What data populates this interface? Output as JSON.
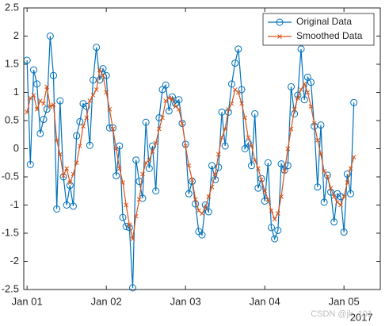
{
  "chart_data": {
    "type": "line",
    "x": [
      0,
      1,
      2,
      3,
      4,
      5,
      6,
      7,
      8,
      9,
      10,
      11,
      12,
      13,
      14,
      15,
      16,
      17,
      18,
      19,
      20,
      21,
      22,
      23,
      24,
      25,
      26,
      27,
      28,
      29,
      30,
      31,
      32,
      33,
      34,
      35,
      36,
      37,
      38,
      39,
      40,
      41,
      42,
      43,
      44,
      45,
      46,
      47,
      48,
      49,
      50,
      51,
      52,
      53,
      54,
      55,
      56,
      57,
      58,
      59,
      60,
      61,
      62,
      63,
      64,
      65,
      66,
      67,
      68,
      69,
      70,
      71,
      72,
      73,
      74,
      75,
      76,
      77,
      78,
      79,
      80,
      81,
      82,
      83,
      84,
      85,
      86,
      87,
      88,
      89,
      90,
      91,
      92,
      93,
      94,
      95,
      96,
      97,
      98,
      99
    ],
    "series": [
      {
        "name": "Original Data",
        "color": "#0072bd",
        "marker": "circle",
        "values": [
          1.57,
          -0.28,
          1.4,
          1.15,
          0.27,
          0.52,
          0.7,
          2.0,
          1.3,
          -1.07,
          0.85,
          -0.5,
          -1.0,
          -0.65,
          -1.02,
          0.23,
          0.48,
          0.8,
          0.75,
          0.06,
          1.22,
          1.8,
          1.22,
          1.42,
          1.3,
          0.37,
          0.37,
          -0.48,
          0.05,
          -1.22,
          -1.38,
          -1.4,
          -2.47,
          -0.2,
          -0.58,
          -0.88,
          0.47,
          -0.35,
          0.05,
          -0.75,
          0.55,
          1.05,
          1.13,
          0.67,
          0.92,
          0.8,
          0.87,
          0.45,
          0.08,
          -0.8,
          -0.58,
          -0.98,
          -1.47,
          -1.53,
          -1.0,
          -1.12,
          -0.3,
          -0.55,
          -0.33,
          0.65,
          0.05,
          0.65,
          1.15,
          1.52,
          1.77,
          1.05,
          0.0,
          0.1,
          -0.3,
          0.62,
          -0.7,
          -0.53,
          -0.93,
          -0.25,
          -1.4,
          -1.6,
          -1.45,
          -0.27,
          -0.38,
          -0.3,
          1.1,
          0.62,
          0.95,
          1.77,
          0.87,
          1.27,
          1.18,
          0.4,
          -0.68,
          0.42,
          -0.95,
          -0.47,
          -0.77,
          -1.3,
          -0.8,
          -0.85,
          -1.48,
          -0.45,
          -0.8,
          0.82
        ]
      },
      {
        "name": "Smoothed Data",
        "color": "#d95319",
        "marker": "x",
        "values": [
          0.65,
          0.9,
          0.95,
          0.7,
          0.85,
          0.8,
          1.1,
          0.75,
          0.78,
          0.15,
          -0.1,
          -0.48,
          -0.35,
          -0.6,
          -0.45,
          -0.25,
          0.05,
          0.4,
          0.55,
          0.85,
          0.95,
          1.05,
          1.4,
          1.3,
          1.0,
          0.7,
          0.35,
          0.0,
          -0.35,
          -0.6,
          -1.0,
          -1.35,
          -1.6,
          -1.2,
          -0.9,
          -0.45,
          -0.25,
          -0.2,
          -0.05,
          0.1,
          0.35,
          0.55,
          0.85,
          0.9,
          0.88,
          0.75,
          0.7,
          0.45,
          0.05,
          -0.3,
          -0.55,
          -0.9,
          -1.1,
          -1.15,
          -1.05,
          -0.85,
          -0.68,
          -0.45,
          -0.1,
          0.2,
          0.35,
          0.7,
          0.8,
          1.05,
          1.0,
          0.8,
          0.55,
          0.2,
          0.05,
          -0.2,
          -0.35,
          -0.55,
          -0.75,
          -0.9,
          -1.1,
          -1.25,
          -1.15,
          -0.85,
          -0.4,
          0.0,
          0.35,
          0.7,
          0.9,
          1.05,
          1.15,
          1.0,
          0.75,
          0.45,
          0.15,
          -0.1,
          -0.4,
          -0.5,
          -0.7,
          -0.85,
          -0.95,
          -1.0,
          -0.85,
          -0.6,
          -0.35,
          -0.15
        ]
      }
    ],
    "xlim": [
      -1,
      107
    ],
    "xticks": [
      {
        "value": 0,
        "label": "Jan 01"
      },
      {
        "value": 24,
        "label": "Jan 02"
      },
      {
        "value": 48,
        "label": "Jan 03"
      },
      {
        "value": 72,
        "label": "Jan 04"
      },
      {
        "value": 96,
        "label": "Jan 05"
      }
    ],
    "x_axis_secondary_label": "2017",
    "ylim": [
      -2.5,
      2.5
    ],
    "yticks": [
      -2.5,
      -2,
      -1.5,
      -1,
      -0.5,
      0,
      0.5,
      1,
      1.5,
      2,
      2.5
    ],
    "legend": "top-right",
    "grid": false,
    "watermark": "CSDN @jk_101"
  }
}
